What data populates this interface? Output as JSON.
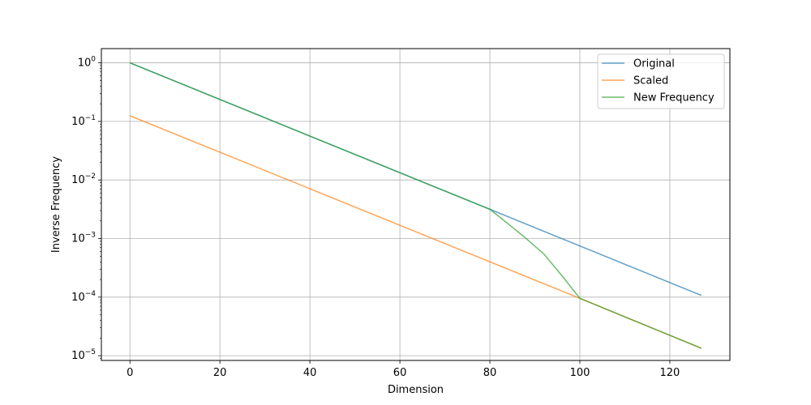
{
  "chart_data": {
    "type": "line",
    "title": "",
    "xlabel": "Dimension",
    "ylabel": "Inverse Frequency",
    "yscale": "log",
    "xlim": [
      -6.35,
      133.35
    ],
    "ylim": [
      8.3e-06,
      1.75
    ],
    "xticks": [
      0,
      20,
      40,
      60,
      80,
      100,
      120
    ],
    "yticks": [
      {
        "value": 1,
        "base": "10",
        "exp": "0"
      },
      {
        "value": 0.1,
        "base": "10",
        "exp": "−1"
      },
      {
        "value": 0.01,
        "base": "10",
        "exp": "−2"
      },
      {
        "value": 0.001,
        "base": "10",
        "exp": "−3"
      },
      {
        "value": 0.0001,
        "base": "10",
        "exp": "−4"
      },
      {
        "value": 1e-05,
        "base": "10",
        "exp": "−5"
      }
    ],
    "grid": true,
    "legend_position": "upper-right",
    "series": [
      {
        "name": "Original",
        "color": "#1f77b4",
        "opacity": 0.7,
        "x": [
          0,
          80,
          127
        ],
        "y": [
          1.0,
          0.00316,
          0.000107
        ]
      },
      {
        "name": "Scaled",
        "color": "#ff7f0e",
        "opacity": 0.7,
        "x": [
          0,
          100,
          127
        ],
        "y": [
          0.125,
          9.54e-05,
          1.34e-05
        ]
      },
      {
        "name": "New Frequency",
        "color": "#2ca02c",
        "opacity": 0.7,
        "x": [
          0,
          80,
          84,
          88,
          92,
          96,
          100,
          127
        ],
        "y": [
          1.0,
          0.00316,
          0.0018,
          0.00101,
          0.000545,
          0.000233,
          9.54e-05,
          1.34e-05
        ]
      }
    ]
  }
}
